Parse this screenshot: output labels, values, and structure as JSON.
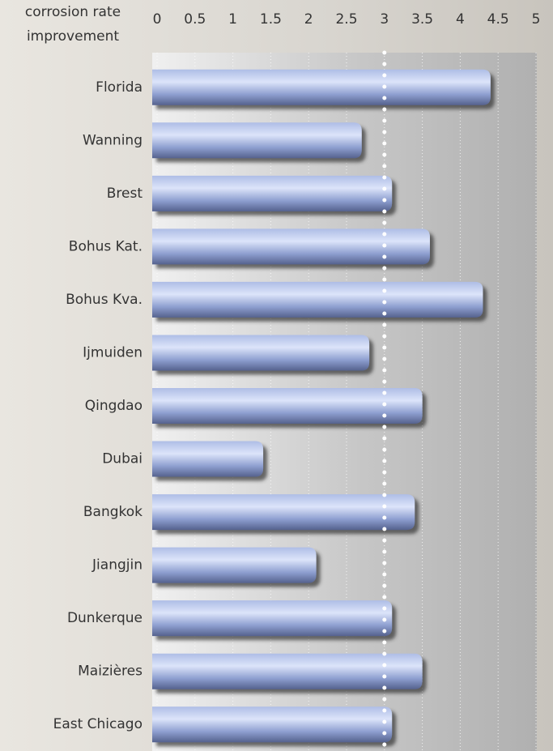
{
  "chart_data": {
    "type": "bar",
    "orientation": "horizontal",
    "axis_label_lines": [
      "corrosion rate",
      "improvement"
    ],
    "categories": [
      "Florida",
      "Wanning",
      "Brest",
      "Bohus Kat.",
      "Bohus Kva.",
      "Ijmuiden",
      "Qingdao",
      "Dubai",
      "Bangkok",
      "Jiangjin",
      "Dunkerque",
      "Maizières",
      "East Chicago"
    ],
    "values": [
      4.4,
      2.7,
      3.1,
      3.6,
      4.3,
      2.8,
      3.5,
      1.4,
      3.4,
      2.1,
      3.1,
      3.5,
      3.1
    ],
    "color": "#8e9fd0",
    "xlim": [
      0,
      5
    ],
    "xticks": [
      0,
      0.5,
      1,
      1.5,
      2,
      2.5,
      3,
      3.5,
      4,
      4.5,
      5
    ],
    "grid": true,
    "reference_line": 3
  }
}
